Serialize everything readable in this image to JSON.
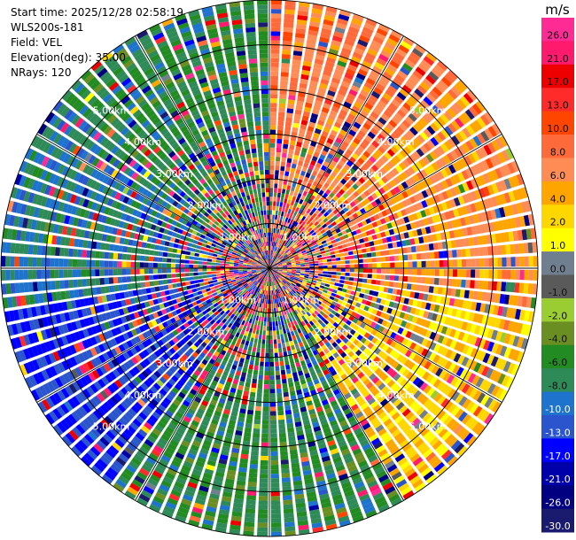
{
  "metadata": {
    "start_time_label": "Start time:",
    "start_time": "2025/12/28 02:58:19",
    "instrument": "WLS200s-181",
    "field_label": "Field:",
    "field": "VEL",
    "elevation_label": "Elevation(deg):",
    "elevation": "35.00",
    "nrays_label": "NRays:",
    "nrays": "120"
  },
  "colorbar": {
    "unit": "m/s",
    "tick_labels": [
      "26.0",
      "21.0",
      "17.0",
      "13.0",
      "10.0",
      "8.0",
      "6.0",
      "4.0",
      "2.0",
      "1.0",
      "0.0",
      "-1.0",
      "-2.0",
      "-4.0",
      "-6.0",
      "-8.0",
      "-10.0",
      "-13.0",
      "-17.0",
      "-21.0",
      "-26.0",
      "-30.0"
    ],
    "colors": [
      "#ff2b95",
      "#ff1a6e",
      "#ee0000",
      "#ff2a2a",
      "#ff4500",
      "#ff6a3a",
      "#ff8c55",
      "#ffa500",
      "#ffd700",
      "#ffff00",
      "#6f7f8f",
      "#5a5a5a",
      "#9acd32",
      "#6b8e23",
      "#228b22",
      "#2e8b57",
      "#1e73cd",
      "#2a55cc",
      "#0000ff",
      "#0000aa",
      "#000080",
      "#1a1a6e"
    ]
  },
  "chart_data": {
    "type": "polar_ppi",
    "field": "VEL",
    "units": "m/s",
    "n_rays": 120,
    "vmin": -30.0,
    "vmax": 26.0,
    "range_ring_labels": [
      "1.00km",
      "2.00km",
      "3.00km",
      "4.00km",
      "5.00km"
    ],
    "range_rings_km": [
      1,
      2,
      3,
      4,
      5,
      6
    ],
    "max_range_km": 6.0,
    "sector_pattern": [
      {
        "azimuth_from_deg": 0,
        "azimuth_to_deg": 45,
        "dominant_velocity": 8.0
      },
      {
        "azimuth_from_deg": 45,
        "azimuth_to_deg": 100,
        "dominant_velocity": 6.0
      },
      {
        "azimuth_from_deg": 100,
        "azimuth_to_deg": 150,
        "dominant_velocity": 3.0
      },
      {
        "azimuth_from_deg": 150,
        "azimuth_to_deg": 215,
        "dominant_velocity": -6.0
      },
      {
        "azimuth_from_deg": 215,
        "azimuth_to_deg": 260,
        "dominant_velocity": -13.0
      },
      {
        "azimuth_from_deg": 260,
        "azimuth_to_deg": 310,
        "dominant_velocity": -8.0
      },
      {
        "azimuth_from_deg": 310,
        "azimuth_to_deg": 360,
        "dominant_velocity": -6.0
      }
    ]
  }
}
